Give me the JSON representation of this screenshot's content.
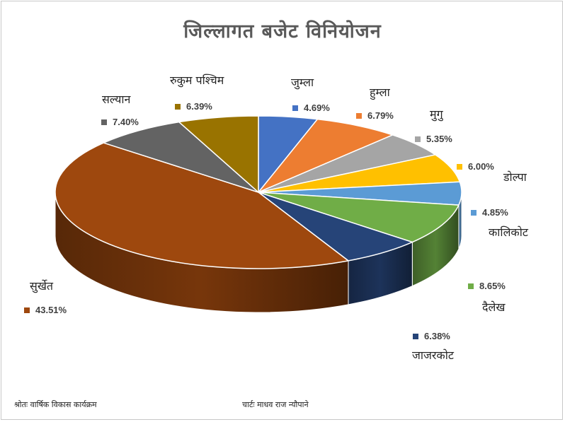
{
  "title": "जिल्लागत बजेट विनियोजन",
  "footer": {
    "source": "श्रोतः वार्षिक विकास कार्यक्रम",
    "credit": "चार्टः माधव राज न्यौपाने"
  },
  "chart_data": {
    "type": "pie",
    "style": "3d",
    "title": "जिल्लागत बजेट विनियोजन",
    "slices": [
      {
        "label": "जुम्ला",
        "value": 4.69,
        "value_label": "4.69%",
        "color": "#4472C4"
      },
      {
        "label": "हुम्ला",
        "value": 6.79,
        "value_label": "6.79%",
        "color": "#ED7D31"
      },
      {
        "label": "मुगु",
        "value": 5.35,
        "value_label": "5.35%",
        "color": "#A5A5A5"
      },
      {
        "label": "डोल्पा",
        "value": 6.0,
        "value_label": "6.00%",
        "color": "#FFC000"
      },
      {
        "label": "कालिकोट",
        "value": 4.85,
        "value_label": "4.85%",
        "color": "#5B9BD5"
      },
      {
        "label": "दैलेख",
        "value": 8.65,
        "value_label": "8.65%",
        "color": "#70AD47"
      },
      {
        "label": "जाजरकोट",
        "value": 6.38,
        "value_label": "6.38%",
        "color": "#264478"
      },
      {
        "label": "सुर्खेत",
        "value": 43.51,
        "value_label": "43.51%",
        "color": "#9E480E"
      },
      {
        "label": "सल्यान",
        "value": 7.4,
        "value_label": "7.40%",
        "color": "#636363"
      },
      {
        "label": "रुकुम पश्चिम",
        "value": 6.39,
        "value_label": "6.39%",
        "color": "#997300"
      }
    ]
  }
}
